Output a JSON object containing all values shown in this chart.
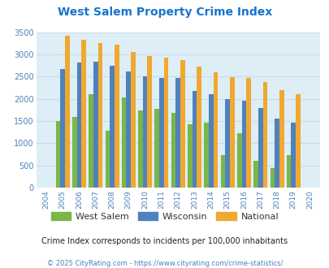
{
  "title": "West Salem Property Crime Index",
  "years": [
    2004,
    2005,
    2006,
    2007,
    2008,
    2009,
    2010,
    2011,
    2012,
    2013,
    2014,
    2015,
    2016,
    2017,
    2018,
    2019,
    2020
  ],
  "west_salem": [
    0,
    1500,
    1600,
    2100,
    1280,
    2030,
    1730,
    1780,
    1680,
    1430,
    1470,
    730,
    1220,
    600,
    430,
    740,
    0
  ],
  "wisconsin": [
    0,
    2670,
    2810,
    2840,
    2750,
    2610,
    2510,
    2460,
    2470,
    2180,
    2100,
    2000,
    1950,
    1800,
    1560,
    1470,
    0
  ],
  "national": [
    0,
    3420,
    3330,
    3260,
    3210,
    3050,
    2960,
    2920,
    2870,
    2730,
    2600,
    2490,
    2470,
    2380,
    2200,
    2110,
    0
  ],
  "bar_width": 0.28,
  "color_ws": "#7ab648",
  "color_wi": "#4f81bd",
  "color_na": "#f0a830",
  "bg_color": "#ddeef6",
  "ylim": [
    0,
    3500
  ],
  "yticks": [
    0,
    500,
    1000,
    1500,
    2000,
    2500,
    3000,
    3500
  ],
  "subtitle": "Crime Index corresponds to incidents per 100,000 inhabitants",
  "footer": "© 2025 CityRating.com - https://www.cityrating.com/crime-statistics/",
  "title_color": "#1874cd",
  "subtitle_color": "#222222",
  "footer_color": "#4f81bd",
  "tick_color": "#4f81bd",
  "grid_color": "#c8dce8"
}
